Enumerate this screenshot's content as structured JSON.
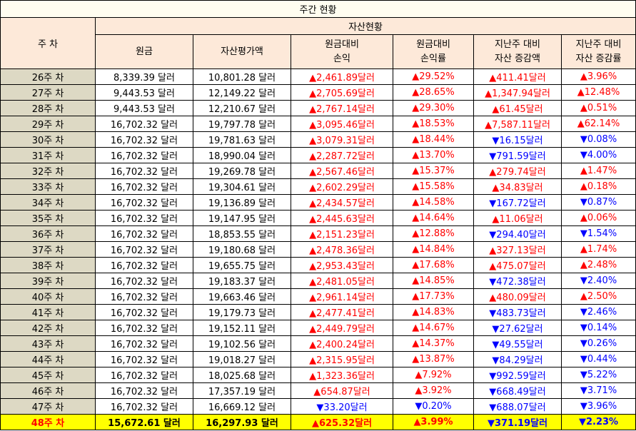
{
  "title": "주간 현황",
  "header": {
    "week_col": "주 차",
    "group": "자산현황",
    "columns": [
      [
        "원금"
      ],
      [
        "자산평가액"
      ],
      [
        "원금대비",
        "손익"
      ],
      [
        "원금대비",
        "손익률"
      ],
      [
        "지난주 대비",
        "자산 증감액"
      ],
      [
        "지난주 대비",
        "자산 증감률"
      ]
    ]
  },
  "colors": {
    "up": "#ff0000",
    "down": "#0000ff",
    "highlight": "#ffff00"
  },
  "rows": [
    {
      "week": "26주 차",
      "principal": "8,339.39 달러",
      "value": "10,801.28 달러",
      "pl": "▲2,461.89달러",
      "pl_dir": "up",
      "plr": "▲29.52%",
      "plr_dir": "up",
      "wd": "▲411.41달러",
      "wd_dir": "up",
      "wr": "▲3.96%",
      "wr_dir": "up"
    },
    {
      "week": "27주 차",
      "principal": "9,443.53 달러",
      "value": "12,149.22 달러",
      "pl": "▲2,705.69달러",
      "pl_dir": "up",
      "plr": "▲28.65%",
      "plr_dir": "up",
      "wd": "▲1,347.94달러",
      "wd_dir": "up",
      "wr": "▲12.48%",
      "wr_dir": "up"
    },
    {
      "week": "28주 차",
      "principal": "9,443.53 달러",
      "value": "12,210.67 달러",
      "pl": "▲2,767.14달러",
      "pl_dir": "up",
      "plr": "▲29.30%",
      "plr_dir": "up",
      "wd": "▲61.45달러",
      "wd_dir": "up",
      "wr": "▲0.51%",
      "wr_dir": "up"
    },
    {
      "week": "29주 차",
      "principal": "16,702.32 달러",
      "value": "19,797.78 달러",
      "pl": "▲3,095.46달러",
      "pl_dir": "up",
      "plr": "▲18.53%",
      "plr_dir": "up",
      "wd": "▲7,587.11달러",
      "wd_dir": "up",
      "wr": "▲62.14%",
      "wr_dir": "up"
    },
    {
      "week": "30주 차",
      "principal": "16,702.32 달러",
      "value": "19,781.63 달러",
      "pl": "▲3,079.31달러",
      "pl_dir": "up",
      "plr": "▲18.44%",
      "plr_dir": "up",
      "wd": "▼16.15달러",
      "wd_dir": "down",
      "wr": "▼0.08%",
      "wr_dir": "down"
    },
    {
      "week": "31주 차",
      "principal": "16,702.32 달러",
      "value": "18,990.04 달러",
      "pl": "▲2,287.72달러",
      "pl_dir": "up",
      "plr": "▲13.70%",
      "plr_dir": "up",
      "wd": "▼791.59달러",
      "wd_dir": "down",
      "wr": "▼4.00%",
      "wr_dir": "down"
    },
    {
      "week": "32주 차",
      "principal": "16,702.32 달러",
      "value": "19,269.78 달러",
      "pl": "▲2,567.46달러",
      "pl_dir": "up",
      "plr": "▲15.37%",
      "plr_dir": "up",
      "wd": "▲279.74달러",
      "wd_dir": "up",
      "wr": "▲1.47%",
      "wr_dir": "up"
    },
    {
      "week": "33주 차",
      "principal": "16,702.32 달러",
      "value": "19,304.61 달러",
      "pl": "▲2,602.29달러",
      "pl_dir": "up",
      "plr": "▲15.58%",
      "plr_dir": "up",
      "wd": "▲34.83달러",
      "wd_dir": "up",
      "wr": "▲0.18%",
      "wr_dir": "up"
    },
    {
      "week": "34주 차",
      "principal": "16,702.32 달러",
      "value": "19,136.89 달러",
      "pl": "▲2,434.57달러",
      "pl_dir": "up",
      "plr": "▲14.58%",
      "plr_dir": "up",
      "wd": "▼167.72달러",
      "wd_dir": "down",
      "wr": "▼0.87%",
      "wr_dir": "down"
    },
    {
      "week": "35주 차",
      "principal": "16,702.32 달러",
      "value": "19,147.95 달러",
      "pl": "▲2,445.63달러",
      "pl_dir": "up",
      "plr": "▲14.64%",
      "plr_dir": "up",
      "wd": "▲11.06달러",
      "wd_dir": "up",
      "wr": "▲0.06%",
      "wr_dir": "up"
    },
    {
      "week": "36주 차",
      "principal": "16,702.32 달러",
      "value": "18,853.55 달러",
      "pl": "▲2,151.23달러",
      "pl_dir": "up",
      "plr": "▲12.88%",
      "plr_dir": "up",
      "wd": "▼294.40달러",
      "wd_dir": "down",
      "wr": "▼1.54%",
      "wr_dir": "down"
    },
    {
      "week": "37주 차",
      "principal": "16,702.32 달러",
      "value": "19,180.68 달러",
      "pl": "▲2,478.36달러",
      "pl_dir": "up",
      "plr": "▲14.84%",
      "plr_dir": "up",
      "wd": "▲327.13달러",
      "wd_dir": "up",
      "wr": "▲1.74%",
      "wr_dir": "up"
    },
    {
      "week": "38주 차",
      "principal": "16,702.32 달러",
      "value": "19,655.75 달러",
      "pl": "▲2,953.43달러",
      "pl_dir": "up",
      "plr": "▲17.68%",
      "plr_dir": "up",
      "wd": "▲475.07달러",
      "wd_dir": "up",
      "wr": "▲2.48%",
      "wr_dir": "up"
    },
    {
      "week": "39주 차",
      "principal": "16,702.32 달러",
      "value": "19,183.37 달러",
      "pl": "▲2,481.05달러",
      "pl_dir": "up",
      "plr": "▲14.85%",
      "plr_dir": "up",
      "wd": "▼472.38달러",
      "wd_dir": "down",
      "wr": "▼2.40%",
      "wr_dir": "down"
    },
    {
      "week": "40주 차",
      "principal": "16,702.32 달러",
      "value": "19,663.46 달러",
      "pl": "▲2,961.14달러",
      "pl_dir": "up",
      "plr": "▲17.73%",
      "plr_dir": "up",
      "wd": "▲480.09달러",
      "wd_dir": "up",
      "wr": "▲2.50%",
      "wr_dir": "up"
    },
    {
      "week": "41주 차",
      "principal": "16,702.32 달러",
      "value": "19,179.73 달러",
      "pl": "▲2,477.41달러",
      "pl_dir": "up",
      "plr": "▲14.83%",
      "plr_dir": "up",
      "wd": "▼483.73달러",
      "wd_dir": "down",
      "wr": "▼2.46%",
      "wr_dir": "down"
    },
    {
      "week": "42주 차",
      "principal": "16,702.32 달러",
      "value": "19,152.11 달러",
      "pl": "▲2,449.79달러",
      "pl_dir": "up",
      "plr": "▲14.67%",
      "plr_dir": "up",
      "wd": "▼27.62달러",
      "wd_dir": "down",
      "wr": "▼0.14%",
      "wr_dir": "down"
    },
    {
      "week": "43주 차",
      "principal": "16,702.32 달러",
      "value": "19,102.56 달러",
      "pl": "▲2,400.24달러",
      "pl_dir": "up",
      "plr": "▲14.37%",
      "plr_dir": "up",
      "wd": "▼49.55달러",
      "wd_dir": "down",
      "wr": "▼0.26%",
      "wr_dir": "down"
    },
    {
      "week": "44주 차",
      "principal": "16,702.32 달러",
      "value": "19,018.27 달러",
      "pl": "▲2,315.95달러",
      "pl_dir": "up",
      "plr": "▲13.87%",
      "plr_dir": "up",
      "wd": "▼84.29달러",
      "wd_dir": "down",
      "wr": "▼0.44%",
      "wr_dir": "down"
    },
    {
      "week": "45주 차",
      "principal": "16,702.32 달러",
      "value": "18,025.68 달러",
      "pl": "▲1,323.36달러",
      "pl_dir": "up",
      "plr": "▲7.92%",
      "plr_dir": "up",
      "wd": "▼992.59달러",
      "wd_dir": "down",
      "wr": "▼5.22%",
      "wr_dir": "down"
    },
    {
      "week": "46주 차",
      "principal": "16,702.32 달러",
      "value": "17,357.19 달러",
      "pl": "▲654.87달러",
      "pl_dir": "up",
      "plr": "▲3.92%",
      "plr_dir": "up",
      "wd": "▼668.49달러",
      "wd_dir": "down",
      "wr": "▼3.71%",
      "wr_dir": "down"
    },
    {
      "week": "47주 차",
      "principal": "16,702.32 달러",
      "value": "16,669.12 달러",
      "pl": "▼33.20달러",
      "pl_dir": "down",
      "plr": "▼0.20%",
      "plr_dir": "down",
      "wd": "▼688.07달러",
      "wd_dir": "down",
      "wr": "▼3.96%",
      "wr_dir": "down"
    },
    {
      "week": "48주 차",
      "principal": "15,672.61 달러",
      "value": "16,297.93 달러",
      "pl": "▲625.32달러",
      "pl_dir": "up",
      "plr": "▲3.99%",
      "plr_dir": "up",
      "wd": "▼371.19달러",
      "wd_dir": "down",
      "wr": "▼2.23%",
      "wr_dir": "down",
      "highlight": true
    }
  ]
}
